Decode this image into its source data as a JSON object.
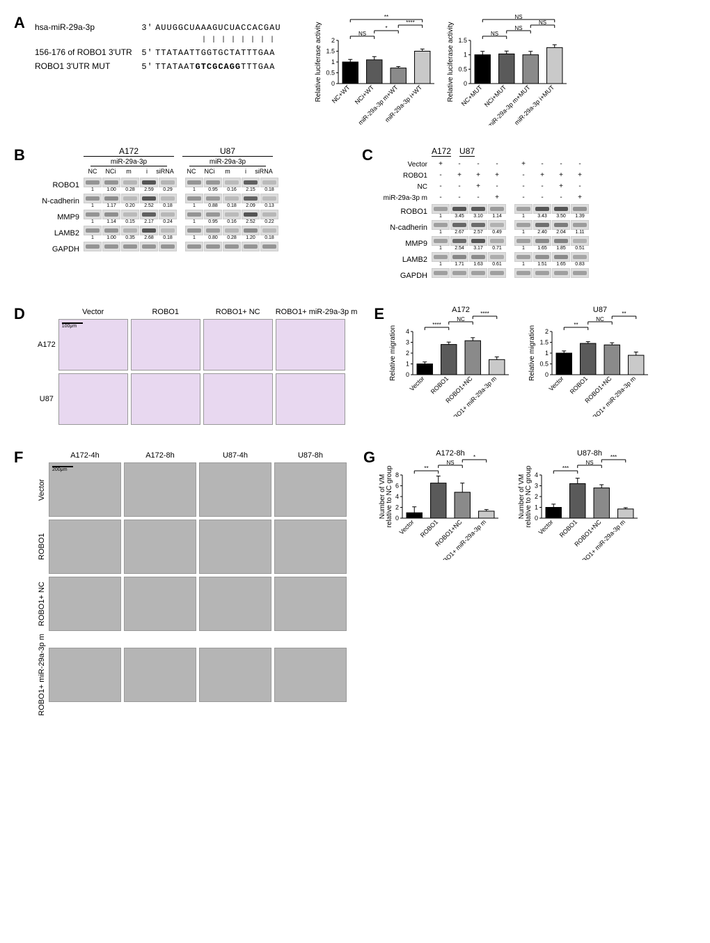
{
  "panelA": {
    "seq": {
      "mir_label": "hsa-miR-29a-3p",
      "mir_dir": "3'",
      "mir_seq": "AUUGGCUAAAGUCUACCACGAU",
      "wt_label": "156-176 of ROBO1 3'UTR",
      "wt_dir": "5'",
      "wt_seq": "TTATAATTGGTGCTATTTGAA",
      "mut_label": "ROBO1 3'UTR MUT",
      "mut_dir": "5'",
      "mut_seq_pre": "TTATAAT",
      "mut_seq_mut": "GTCGCAGG",
      "mut_seq_post": "TTTGAA",
      "match_line": "| | | | | | | |"
    },
    "chartWT": {
      "ylabel": "Relative luciferase activity",
      "ylim": [
        0,
        2.0
      ],
      "ytick_step": 0.5,
      "groups": [
        "NC+WT",
        "NCi+WT",
        "miR-29a-3p m+WT",
        "miR-29a-3p i+WT"
      ],
      "values": [
        1.0,
        1.1,
        0.72,
        1.5
      ],
      "errors": [
        0.12,
        0.15,
        0.07,
        0.1
      ],
      "colors": [
        "#000000",
        "#5a5a5a",
        "#8a8a8a",
        "#c9c9c9"
      ],
      "sig": [
        {
          "a": 0,
          "b": 1,
          "label": "NS"
        },
        {
          "a": 1,
          "b": 2,
          "label": "*"
        },
        {
          "a": 0,
          "b": 3,
          "label": "**"
        },
        {
          "a": 2,
          "b": 3,
          "label": "****"
        }
      ]
    },
    "chartMUT": {
      "ylabel": "Relative luciferase activity",
      "ylim": [
        0,
        1.5
      ],
      "ytick_step": 0.5,
      "groups": [
        "NC+MUT",
        "NCi+MUT",
        "miR-29a-3p m+MUT",
        "miR-29a-3p i+MUT"
      ],
      "values": [
        1.0,
        1.03,
        1.0,
        1.25
      ],
      "errors": [
        0.12,
        0.1,
        0.12,
        0.1
      ],
      "colors": [
        "#000000",
        "#5a5a5a",
        "#8a8a8a",
        "#c9c9c9"
      ],
      "sig": [
        {
          "a": 0,
          "b": 1,
          "label": "NS"
        },
        {
          "a": 1,
          "b": 2,
          "label": "NS"
        },
        {
          "a": 2,
          "b": 3,
          "label": "NS"
        },
        {
          "a": 0,
          "b": 3,
          "label": "NS"
        }
      ]
    }
  },
  "panelB": {
    "cells": [
      "A172",
      "U87"
    ],
    "subhead": "miR-29a-3p",
    "lanes": [
      "NC",
      "NCi",
      "m",
      "i",
      "siRNA"
    ],
    "proteins": [
      "ROBO1",
      "N-cadherin",
      "MMP9",
      "LAMB2",
      "GAPDH"
    ],
    "quant": {
      "A172": {
        "ROBO1": [
          "1",
          "1.00",
          "0.28",
          "2.59",
          "0.29"
        ],
        "N-cadherin": [
          "1",
          "1.17",
          "0.20",
          "2.52",
          "0.18"
        ],
        "MMP9": [
          "1",
          "1.14",
          "0.15",
          "2.17",
          "0.24"
        ],
        "LAMB2": [
          "1",
          "1.00",
          "0.35",
          "2.68",
          "0.18"
        ]
      },
      "U87": {
        "ROBO1": [
          "1",
          "0.95",
          "0.16",
          "2.15",
          "0.18"
        ],
        "N-cadherin": [
          "1",
          "0.88",
          "0.18",
          "2.09",
          "0.13"
        ],
        "MMP9": [
          "1",
          "0.95",
          "0.16",
          "2.52",
          "0.22"
        ],
        "LAMB2": [
          "1",
          "0.80",
          "0.28",
          "1.20",
          "0.18"
        ]
      }
    }
  },
  "panelC": {
    "cells": [
      "A172",
      "U87"
    ],
    "treatments": [
      "Vector",
      "ROBO1",
      "NC",
      "miR-29a-3p m"
    ],
    "treat_matrix": [
      [
        "+",
        "-",
        "-",
        "-"
      ],
      [
        "-",
        "+",
        "+",
        "+"
      ],
      [
        "-",
        "-",
        "+",
        "-"
      ],
      [
        "-",
        "-",
        "-",
        "+"
      ]
    ],
    "proteins": [
      "ROBO1",
      "N-cadherin",
      "MMP9",
      "LAMB2",
      "GAPDH"
    ],
    "quant": {
      "A172": {
        "ROBO1": [
          "1",
          "3.45",
          "3.10",
          "1.14"
        ],
        "N-cadherin": [
          "1",
          "2.67",
          "2.57",
          "0.49"
        ],
        "MMP9": [
          "1",
          "2.54",
          "3.17",
          "0.71"
        ],
        "LAMB2": [
          "1",
          "1.71",
          "1.63",
          "0.61"
        ]
      },
      "U87": {
        "ROBO1": [
          "1",
          "3.43",
          "3.50",
          "1.39"
        ],
        "N-cadherin": [
          "1",
          "2.40",
          "2.04",
          "1.11"
        ],
        "MMP9": [
          "1",
          "1.65",
          "1.85",
          "0.51"
        ],
        "LAMB2": [
          "1",
          "1.51",
          "1.65",
          "0.83"
        ]
      }
    }
  },
  "panelD": {
    "cols": [
      "Vector",
      "ROBO1",
      "ROBO1+ NC",
      "ROBO1+ miR-29a-3p m"
    ],
    "rows": [
      "A172",
      "U87"
    ],
    "scale": "100μm",
    "cell_color": "#e8d8f0"
  },
  "panelE": {
    "chartA": {
      "title": "A172",
      "ylabel": "Relative migration",
      "ylim": [
        0,
        4
      ],
      "ytick_step": 1,
      "groups": [
        "Vector",
        "ROBO1",
        "ROBO1+NC",
        "ROBO1+\nmiR-29a-3p m"
      ],
      "values": [
        1.0,
        2.8,
        3.15,
        1.4
      ],
      "errors": [
        0.18,
        0.22,
        0.28,
        0.25
      ],
      "colors": [
        "#000000",
        "#5a5a5a",
        "#8a8a8a",
        "#c9c9c9"
      ],
      "sig": [
        {
          "a": 0,
          "b": 1,
          "label": "****"
        },
        {
          "a": 1,
          "b": 2,
          "label": "NC"
        },
        {
          "a": 2,
          "b": 3,
          "label": "****"
        }
      ]
    },
    "chartU": {
      "title": "U87",
      "ylabel": "Relative migration",
      "ylim": [
        0,
        2.0
      ],
      "ytick_step": 0.5,
      "groups": [
        "Vector",
        "ROBO1",
        "ROBO1+NC",
        "ROBO1+\nmiR-29a-3p m"
      ],
      "values": [
        1.0,
        1.45,
        1.38,
        0.9
      ],
      "errors": [
        0.1,
        0.08,
        0.1,
        0.15
      ],
      "colors": [
        "#000000",
        "#5a5a5a",
        "#8a8a8a",
        "#c9c9c9"
      ],
      "sig": [
        {
          "a": 0,
          "b": 1,
          "label": "**"
        },
        {
          "a": 1,
          "b": 2,
          "label": "NC"
        },
        {
          "a": 2,
          "b": 3,
          "label": "**"
        }
      ]
    }
  },
  "panelF": {
    "cols": [
      "A172-4h",
      "A172-8h",
      "U87-4h",
      "U87-8h"
    ],
    "rows": [
      "Vector",
      "ROBO1",
      "ROBO1+ NC",
      "ROBO1+ miR-29a-3p m"
    ],
    "scale": "200μm",
    "cell_color": "#b5b5b5"
  },
  "panelG": {
    "chartA": {
      "title": "A172-8h",
      "ylabel": "Number of VM\nrelative to NC group",
      "ylim": [
        0,
        8
      ],
      "ytick_step": 2,
      "groups": [
        "Vector",
        "ROBO1",
        "ROBO1+NC",
        "ROBO1+\nmiR-29a-3p m"
      ],
      "values": [
        1.0,
        6.5,
        4.8,
        1.3
      ],
      "errors": [
        1.1,
        1.3,
        1.7,
        0.3
      ],
      "colors": [
        "#000000",
        "#5a5a5a",
        "#8a8a8a",
        "#c9c9c9"
      ],
      "sig": [
        {
          "a": 0,
          "b": 1,
          "label": "**"
        },
        {
          "a": 1,
          "b": 2,
          "label": "NS"
        },
        {
          "a": 2,
          "b": 3,
          "label": "*"
        }
      ]
    },
    "chartU": {
      "title": "U87-8h",
      "ylabel": "Number of VM\nrelative to NC group",
      "ylim": [
        0,
        4
      ],
      "ytick_step": 1,
      "groups": [
        "Vector",
        "ROBO1",
        "ROBO1+NC",
        "ROBO1+\nmiR-29a-3p m"
      ],
      "values": [
        1.0,
        3.2,
        2.8,
        0.85
      ],
      "errors": [
        0.3,
        0.5,
        0.3,
        0.12
      ],
      "colors": [
        "#000000",
        "#5a5a5a",
        "#8a8a8a",
        "#c9c9c9"
      ],
      "sig": [
        {
          "a": 0,
          "b": 1,
          "label": "***"
        },
        {
          "a": 1,
          "b": 2,
          "label": "NS"
        },
        {
          "a": 2,
          "b": 3,
          "label": "***"
        }
      ]
    }
  },
  "panel_labels": {
    "A": "A",
    "B": "B",
    "C": "C",
    "D": "D",
    "E": "E",
    "F": "F",
    "G": "G"
  }
}
